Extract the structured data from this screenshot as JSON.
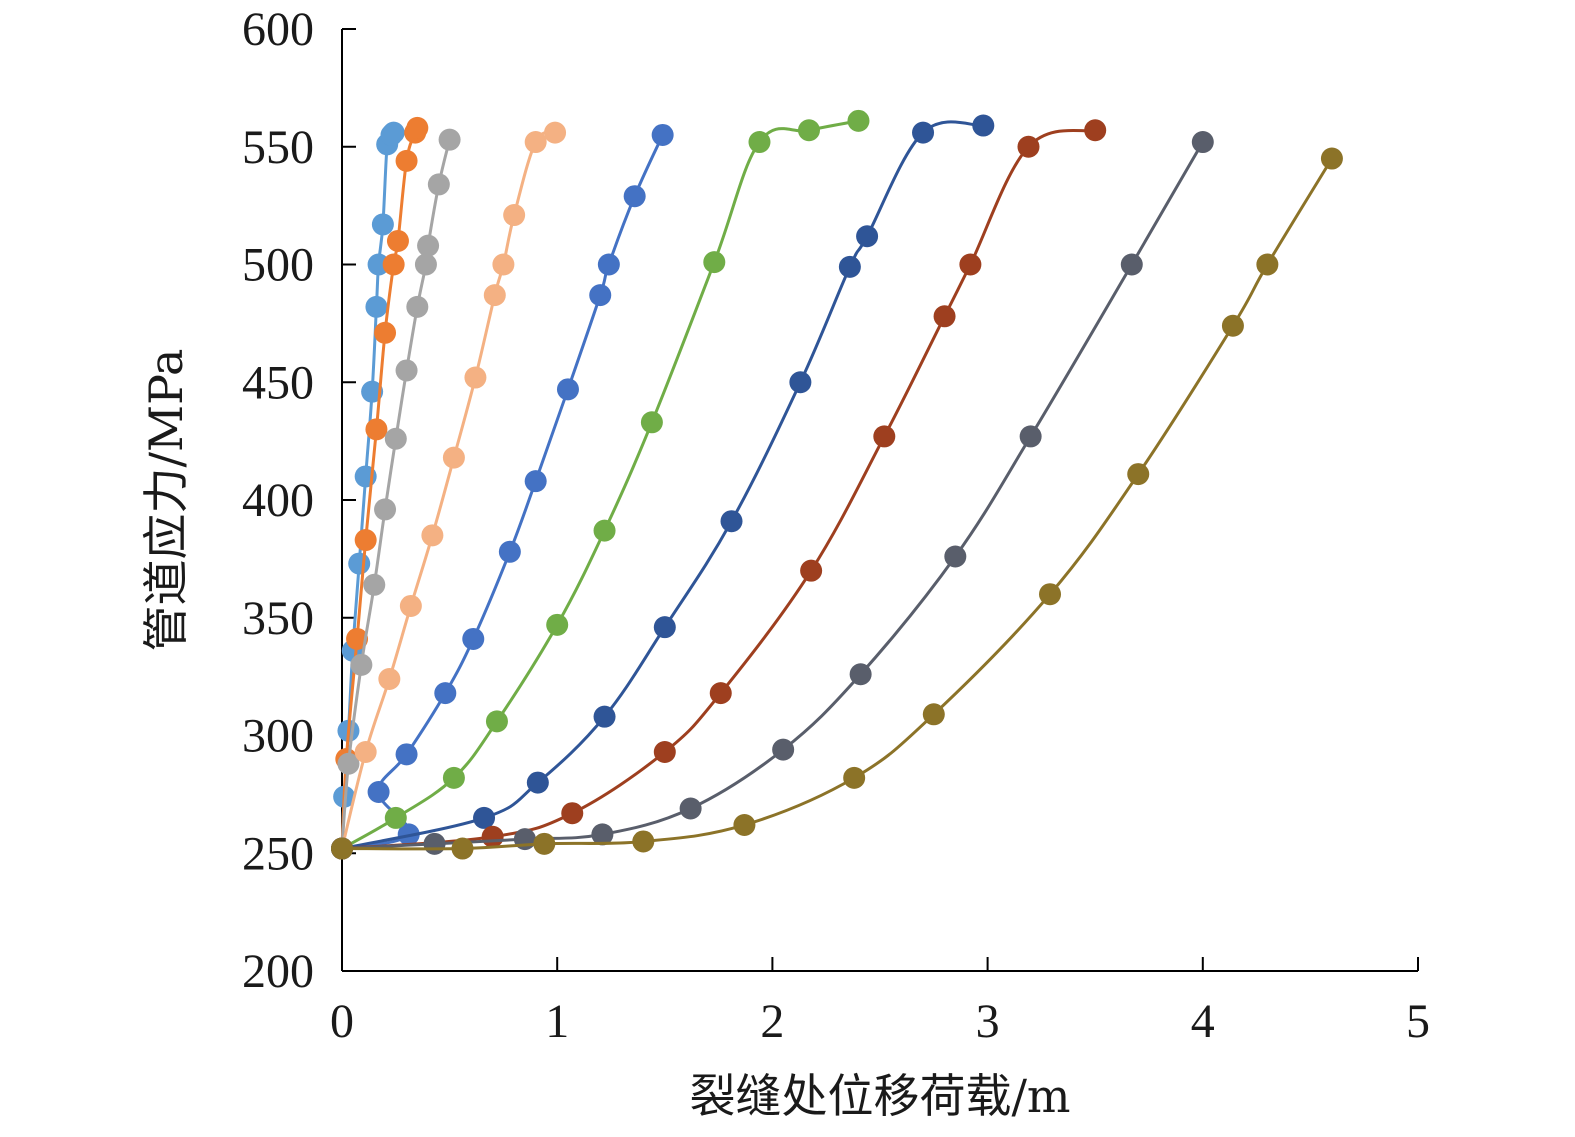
{
  "chart_data": {
    "type": "line",
    "xlabel": "裂缝处位移荷载/m",
    "ylabel": "管道应力/MPa",
    "xlim": [
      0,
      5
    ],
    "ylim": [
      200,
      600
    ],
    "x_ticks": [
      "0",
      "1",
      "2",
      "3",
      "4",
      "5"
    ],
    "y_ticks": [
      "200",
      "250",
      "300",
      "350",
      "400",
      "450",
      "500",
      "550",
      "600"
    ],
    "grid": false,
    "legend": "none",
    "series": [
      {
        "color": "#5b9bd5",
        "points": [
          [
            0,
            252
          ],
          [
            0.01,
            274
          ],
          [
            0.03,
            302
          ],
          [
            0.05,
            336
          ],
          [
            0.08,
            373
          ],
          [
            0.11,
            410
          ],
          [
            0.14,
            446
          ],
          [
            0.16,
            482
          ],
          [
            0.17,
            500
          ],
          [
            0.19,
            517
          ],
          [
            0.21,
            551
          ],
          [
            0.23,
            555
          ],
          [
            0.24,
            556
          ]
        ]
      },
      {
        "color": "#ed7d31",
        "points": [
          [
            0,
            252
          ],
          [
            0.02,
            290
          ],
          [
            0.07,
            341
          ],
          [
            0.11,
            383
          ],
          [
            0.16,
            430
          ],
          [
            0.2,
            471
          ],
          [
            0.24,
            500
          ],
          [
            0.26,
            510
          ],
          [
            0.3,
            544
          ],
          [
            0.34,
            556
          ],
          [
            0.35,
            558
          ]
        ]
      },
      {
        "color": "#a5a5a5",
        "points": [
          [
            0,
            252
          ],
          [
            0.03,
            288
          ],
          [
            0.09,
            330
          ],
          [
            0.15,
            364
          ],
          [
            0.2,
            396
          ],
          [
            0.25,
            426
          ],
          [
            0.3,
            455
          ],
          [
            0.35,
            482
          ],
          [
            0.39,
            500
          ],
          [
            0.4,
            508
          ],
          [
            0.45,
            534
          ],
          [
            0.5,
            553
          ]
        ]
      },
      {
        "color": "#f4b183",
        "points": [
          [
            0,
            252
          ],
          [
            0.11,
            293
          ],
          [
            0.22,
            324
          ],
          [
            0.32,
            355
          ],
          [
            0.42,
            385
          ],
          [
            0.52,
            418
          ],
          [
            0.62,
            452
          ],
          [
            0.71,
            487
          ],
          [
            0.75,
            500
          ],
          [
            0.8,
            521
          ],
          [
            0.9,
            552
          ],
          [
            0.99,
            556
          ]
        ]
      },
      {
        "color": "#4472c4",
        "points": [
          [
            0,
            252
          ],
          [
            0.31,
            258
          ],
          [
            0.3,
            292
          ],
          [
            0.17,
            276
          ],
          [
            0.48,
            318
          ],
          [
            0.61,
            341
          ],
          [
            0.78,
            378
          ],
          [
            0.9,
            408
          ],
          [
            1.05,
            447
          ],
          [
            1.2,
            487
          ],
          [
            1.24,
            500
          ],
          [
            1.36,
            529
          ],
          [
            1.49,
            555
          ]
        ]
      },
      {
        "color": "#70ad47",
        "points": [
          [
            0,
            252
          ],
          [
            0.25,
            265
          ],
          [
            0.52,
            282
          ],
          [
            0.72,
            306
          ],
          [
            1.0,
            347
          ],
          [
            1.22,
            387
          ],
          [
            1.44,
            433
          ],
          [
            1.73,
            501
          ],
          [
            1.94,
            552
          ],
          [
            2.17,
            557
          ],
          [
            2.4,
            561
          ]
        ]
      },
      {
        "color": "#2f5597",
        "points": [
          [
            0,
            252
          ],
          [
            0.66,
            265
          ],
          [
            0.91,
            280
          ],
          [
            1.22,
            308
          ],
          [
            1.5,
            346
          ],
          [
            1.81,
            391
          ],
          [
            2.13,
            450
          ],
          [
            2.36,
            499
          ],
          [
            2.44,
            512
          ],
          [
            2.7,
            556
          ],
          [
            2.98,
            559
          ]
        ]
      },
      {
        "color": "#9e3f1f",
        "points": [
          [
            0,
            252
          ],
          [
            0.7,
            257
          ],
          [
            1.07,
            267
          ],
          [
            1.5,
            293
          ],
          [
            1.76,
            318
          ],
          [
            2.18,
            370
          ],
          [
            2.52,
            427
          ],
          [
            2.8,
            478
          ],
          [
            2.92,
            500
          ],
          [
            3.19,
            550
          ],
          [
            3.5,
            557
          ]
        ]
      },
      {
        "color": "#595e6b",
        "points": [
          [
            0,
            252
          ],
          [
            0.43,
            254
          ],
          [
            0.85,
            256
          ],
          [
            1.21,
            258
          ],
          [
            1.62,
            269
          ],
          [
            2.05,
            294
          ],
          [
            2.41,
            326
          ],
          [
            2.85,
            376
          ],
          [
            3.2,
            427
          ],
          [
            3.67,
            500
          ],
          [
            4.0,
            552
          ]
        ]
      },
      {
        "color": "#8c7328",
        "points": [
          [
            0,
            252
          ],
          [
            0.56,
            252
          ],
          [
            0.94,
            254
          ],
          [
            1.4,
            255
          ],
          [
            1.87,
            262
          ],
          [
            2.38,
            282
          ],
          [
            2.75,
            309
          ],
          [
            3.29,
            360
          ],
          [
            3.7,
            411
          ],
          [
            4.14,
            474
          ],
          [
            4.3,
            500
          ],
          [
            4.6,
            545
          ]
        ]
      }
    ]
  }
}
